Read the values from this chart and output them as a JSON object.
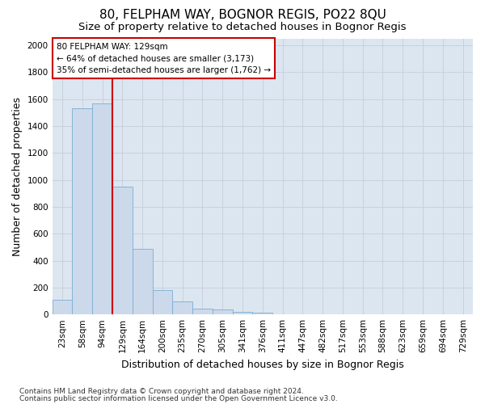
{
  "title": "80, FELPHAM WAY, BOGNOR REGIS, PO22 8QU",
  "subtitle": "Size of property relative to detached houses in Bognor Regis",
  "xlabel": "Distribution of detached houses by size in Bognor Regis",
  "ylabel": "Number of detached properties",
  "footer1": "Contains HM Land Registry data © Crown copyright and database right 2024.",
  "footer2": "Contains public sector information licensed under the Open Government Licence v3.0.",
  "categories": [
    "23sqm",
    "58sqm",
    "94sqm",
    "129sqm",
    "164sqm",
    "200sqm",
    "235sqm",
    "270sqm",
    "305sqm",
    "341sqm",
    "376sqm",
    "411sqm",
    "447sqm",
    "482sqm",
    "517sqm",
    "553sqm",
    "588sqm",
    "623sqm",
    "659sqm",
    "694sqm",
    "729sqm"
  ],
  "values": [
    110,
    1530,
    1570,
    950,
    490,
    180,
    95,
    45,
    35,
    22,
    15,
    0,
    0,
    0,
    0,
    0,
    0,
    0,
    0,
    0,
    0
  ],
  "bar_color": "#ccd9ea",
  "bar_edge_color": "#7aadd4",
  "vline_color": "#cc0000",
  "vline_index": 2.5,
  "annotation_text": "80 FELPHAM WAY: 129sqm\n← 64% of detached houses are smaller (3,173)\n35% of semi-detached houses are larger (1,762) →",
  "annotation_box_facecolor": "#ffffff",
  "annotation_box_edgecolor": "#cc0000",
  "grid_color": "#c8d0dc",
  "bg_color": "#dce6f0",
  "fig_bg_color": "#ffffff",
  "ylim": [
    0,
    2050
  ],
  "yticks": [
    0,
    200,
    400,
    600,
    800,
    1000,
    1200,
    1400,
    1600,
    1800,
    2000
  ],
  "title_fontsize": 11,
  "subtitle_fontsize": 9.5,
  "label_fontsize": 9,
  "tick_fontsize": 7.5,
  "annotation_fontsize": 7.5,
  "footer_fontsize": 6.5
}
